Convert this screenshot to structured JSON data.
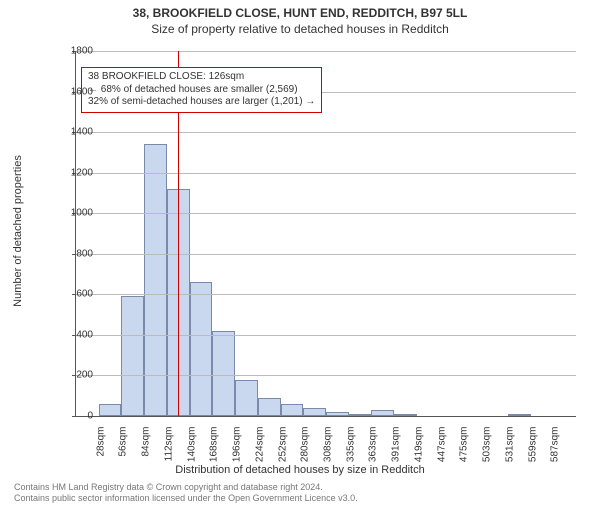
{
  "title_line1": "38, BROOKFIELD CLOSE, HUNT END, REDDITCH, B97 5LL",
  "title_line2": "Size of property relative to detached houses in Redditch",
  "y_axis_label": "Number of detached properties",
  "x_axis_label": "Distribution of detached houses by size in Redditch",
  "chart": {
    "type": "histogram",
    "ylim": [
      0,
      1800
    ],
    "ytick_step": 200,
    "grid_color": "#bbbbbb",
    "axis_color": "#555555",
    "background_color": "#ffffff",
    "bar_fill": "#c9d7ef",
    "bar_border": "#7a8aaa",
    "x_labels": [
      "28sqm",
      "56sqm",
      "84sqm",
      "112sqm",
      "140sqm",
      "168sqm",
      "196sqm",
      "224sqm",
      "252sqm",
      "280sqm",
      "308sqm",
      "335sqm",
      "363sqm",
      "391sqm",
      "419sqm",
      "447sqm",
      "475sqm",
      "503sqm",
      "531sqm",
      "559sqm",
      "587sqm"
    ],
    "values": [
      0,
      60,
      590,
      1340,
      1120,
      660,
      420,
      180,
      90,
      60,
      40,
      20,
      10,
      30,
      10,
      0,
      0,
      0,
      0,
      10,
      0,
      0
    ]
  },
  "marker": {
    "position_sqm": 126,
    "color": "#d00000"
  },
  "callout": {
    "border_color": "#d00000",
    "lines": [
      "38 BROOKFIELD CLOSE: 126sqm",
      "← 68% of detached houses are smaller (2,569)",
      "32% of semi-detached houses are larger (1,201) →"
    ]
  },
  "footer_line1": "Contains HM Land Registry data © Crown copyright and database right 2024.",
  "footer_line2": "Contains public sector information licensed under the Open Government Licence v3.0."
}
